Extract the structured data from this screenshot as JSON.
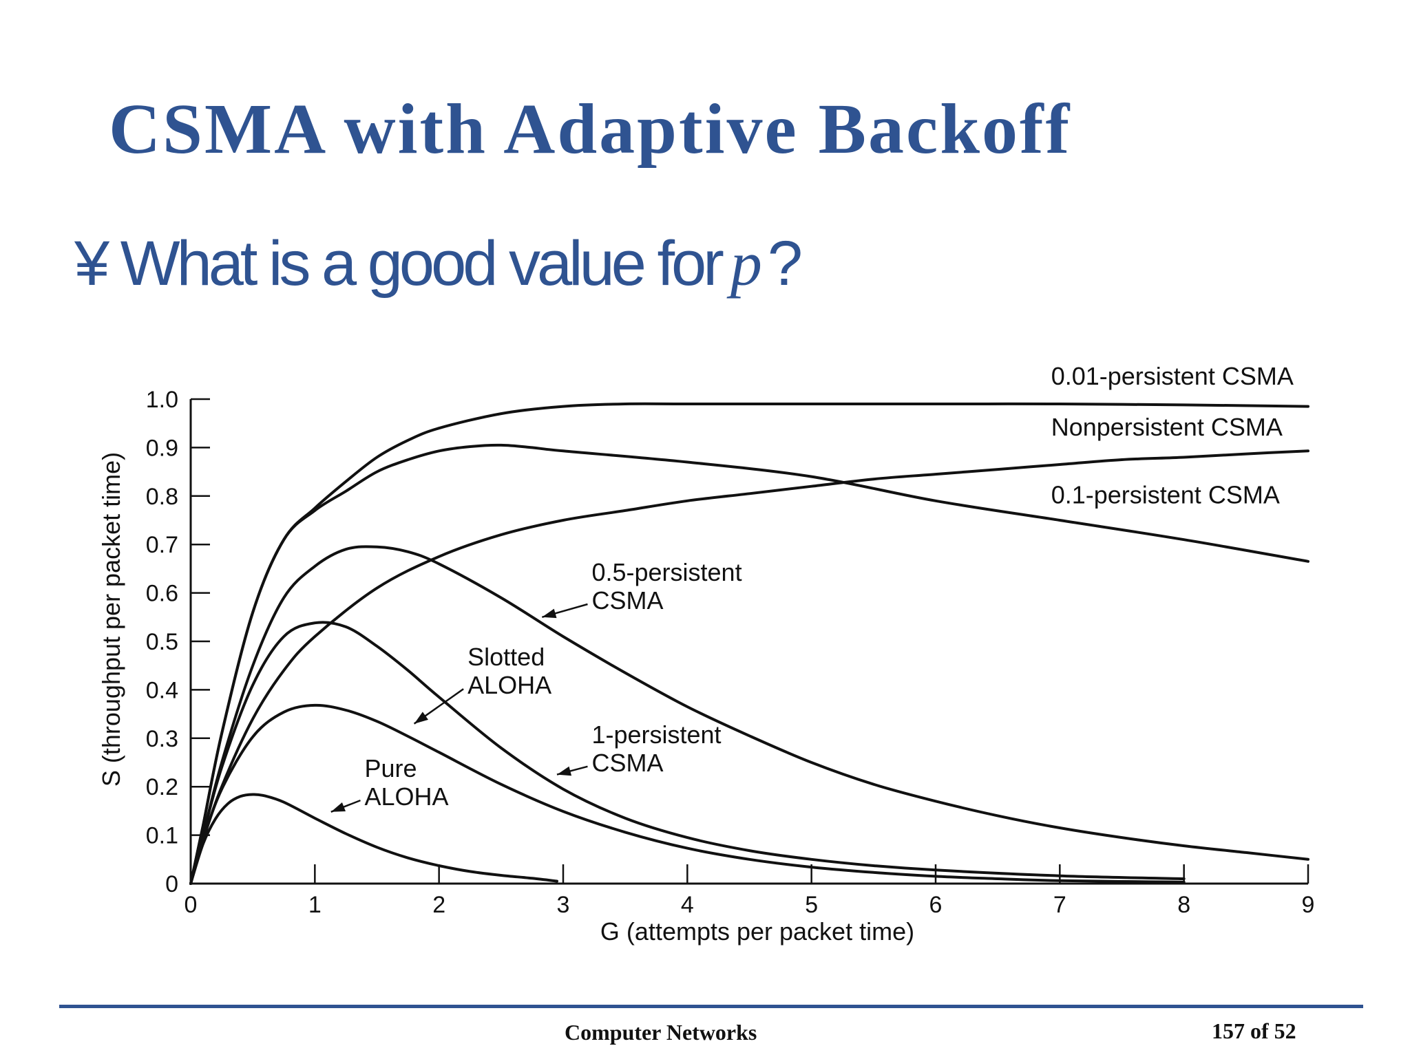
{
  "slide": {
    "title": "CSMA with Adaptive Backoff",
    "bullet_marker": "¥",
    "bullet_text": "What is a good value for",
    "bullet_var": "p",
    "bullet_end": "?"
  },
  "footer": {
    "course": "Computer Networks",
    "page": "157 of 52"
  },
  "chart_data": {
    "type": "line",
    "title": "",
    "xlabel": "G (attempts per packet time)",
    "ylabel": "S (throughput per packet time)",
    "xlim": [
      0,
      9
    ],
    "ylim": [
      0,
      1.0
    ],
    "x_ticks": [
      "0",
      "1",
      "2",
      "3",
      "4",
      "5",
      "6",
      "7",
      "8",
      "9"
    ],
    "y_ticks": [
      "0",
      "0.1",
      "0.2",
      "0.3",
      "0.4",
      "0.5",
      "0.6",
      "0.7",
      "0.8",
      "0.9",
      "1.0"
    ],
    "grid": false,
    "line_color": "#111111",
    "series": [
      {
        "name": "Pure ALOHA",
        "label_lines": [
          "Pure",
          "ALOHA"
        ],
        "points": [
          [
            0,
            0
          ],
          [
            0.1,
            0.082
          ],
          [
            0.2,
            0.134
          ],
          [
            0.3,
            0.165
          ],
          [
            0.4,
            0.18
          ],
          [
            0.5,
            0.184
          ],
          [
            0.6,
            0.181
          ],
          [
            0.75,
            0.168
          ],
          [
            1.0,
            0.135
          ],
          [
            1.25,
            0.103
          ],
          [
            1.5,
            0.075
          ],
          [
            1.75,
            0.053
          ],
          [
            2.0,
            0.037
          ],
          [
            2.25,
            0.025
          ],
          [
            2.5,
            0.017
          ],
          [
            2.75,
            0.011
          ],
          [
            2.95,
            0.005
          ]
        ]
      },
      {
        "name": "Slotted ALOHA",
        "label_lines": [
          "Slotted",
          "ALOHA"
        ],
        "points": [
          [
            0,
            0
          ],
          [
            0.1,
            0.09
          ],
          [
            0.25,
            0.195
          ],
          [
            0.5,
            0.303
          ],
          [
            0.75,
            0.354
          ],
          [
            1.0,
            0.368
          ],
          [
            1.25,
            0.358
          ],
          [
            1.5,
            0.335
          ],
          [
            1.75,
            0.304
          ],
          [
            2.0,
            0.271
          ],
          [
            2.5,
            0.205
          ],
          [
            3.0,
            0.149
          ],
          [
            3.5,
            0.106
          ],
          [
            4.0,
            0.073
          ],
          [
            4.5,
            0.05
          ],
          [
            5.0,
            0.034
          ],
          [
            5.5,
            0.023
          ],
          [
            6.0,
            0.015
          ],
          [
            6.5,
            0.01
          ],
          [
            7.0,
            0.006
          ],
          [
            8.0,
            0.003
          ]
        ]
      },
      {
        "name": "1-persistent CSMA",
        "label_lines": [
          "1-persistent",
          "CSMA"
        ],
        "points": [
          [
            0,
            0
          ],
          [
            0.1,
            0.1
          ],
          [
            0.25,
            0.24
          ],
          [
            0.5,
            0.41
          ],
          [
            0.75,
            0.51
          ],
          [
            1.0,
            0.538
          ],
          [
            1.25,
            0.53
          ],
          [
            1.5,
            0.49
          ],
          [
            1.75,
            0.44
          ],
          [
            2.0,
            0.385
          ],
          [
            2.5,
            0.28
          ],
          [
            3.0,
            0.195
          ],
          [
            3.5,
            0.135
          ],
          [
            4.0,
            0.095
          ],
          [
            4.5,
            0.068
          ],
          [
            5.0,
            0.05
          ],
          [
            5.5,
            0.037
          ],
          [
            6.0,
            0.028
          ],
          [
            7.0,
            0.016
          ],
          [
            8.0,
            0.01
          ]
        ]
      },
      {
        "name": "0.5-persistent CSMA",
        "label_lines": [
          "0.5-persistent",
          "CSMA"
        ],
        "points": [
          [
            0,
            0
          ],
          [
            0.1,
            0.1
          ],
          [
            0.25,
            0.25
          ],
          [
            0.5,
            0.45
          ],
          [
            0.75,
            0.59
          ],
          [
            1.0,
            0.655
          ],
          [
            1.25,
            0.69
          ],
          [
            1.5,
            0.695
          ],
          [
            1.75,
            0.685
          ],
          [
            2.0,
            0.66
          ],
          [
            2.5,
            0.59
          ],
          [
            3.0,
            0.51
          ],
          [
            3.5,
            0.435
          ],
          [
            4.0,
            0.365
          ],
          [
            4.5,
            0.305
          ],
          [
            5.0,
            0.25
          ],
          [
            5.5,
            0.205
          ],
          [
            6.0,
            0.17
          ],
          [
            6.5,
            0.14
          ],
          [
            7.0,
            0.115
          ],
          [
            7.5,
            0.095
          ],
          [
            8.0,
            0.078
          ],
          [
            8.5,
            0.064
          ],
          [
            9.0,
            0.05
          ]
        ]
      },
      {
        "name": "0.1-persistent CSMA",
        "label_lines": [
          "0.1-persistent CSMA"
        ],
        "points": [
          [
            0,
            0
          ],
          [
            0.1,
            0.09
          ],
          [
            0.25,
            0.2
          ],
          [
            0.5,
            0.34
          ],
          [
            0.75,
            0.44
          ],
          [
            1.0,
            0.51
          ],
          [
            1.5,
            0.61
          ],
          [
            2.0,
            0.675
          ],
          [
            2.5,
            0.72
          ],
          [
            3.0,
            0.75
          ],
          [
            3.5,
            0.77
          ],
          [
            4.0,
            0.79
          ],
          [
            4.5,
            0.805
          ],
          [
            5.0,
            0.82
          ],
          [
            5.5,
            0.835
          ],
          [
            6.0,
            0.845
          ],
          [
            6.5,
            0.855
          ],
          [
            7.0,
            0.865
          ],
          [
            7.5,
            0.875
          ],
          [
            8.0,
            0.88
          ],
          [
            8.5,
            0.887
          ],
          [
            9.0,
            0.893
          ]
        ]
      },
      {
        "name": "Nonpersistent CSMA",
        "label_lines": [
          "Nonpersistent CSMA"
        ],
        "points": [
          [
            0,
            0
          ],
          [
            0.1,
            0.12
          ],
          [
            0.25,
            0.31
          ],
          [
            0.5,
            0.56
          ],
          [
            0.75,
            0.71
          ],
          [
            1.0,
            0.77
          ],
          [
            1.25,
            0.81
          ],
          [
            1.5,
            0.85
          ],
          [
            1.75,
            0.875
          ],
          [
            2.0,
            0.893
          ],
          [
            2.25,
            0.902
          ],
          [
            2.5,
            0.905
          ],
          [
            2.75,
            0.9
          ],
          [
            3.0,
            0.893
          ],
          [
            4.0,
            0.87
          ],
          [
            5.0,
            0.84
          ],
          [
            6.0,
            0.79
          ],
          [
            7.0,
            0.75
          ],
          [
            8.0,
            0.71
          ],
          [
            9.0,
            0.665
          ]
        ]
      },
      {
        "name": "0.01-persistent CSMA",
        "label_lines": [
          "0.01-persistent CSMA"
        ],
        "points": [
          [
            0,
            0
          ],
          [
            0.1,
            0.12
          ],
          [
            0.25,
            0.31
          ],
          [
            0.5,
            0.56
          ],
          [
            0.75,
            0.71
          ],
          [
            1.0,
            0.775
          ],
          [
            1.25,
            0.83
          ],
          [
            1.5,
            0.88
          ],
          [
            1.75,
            0.915
          ],
          [
            2.0,
            0.94
          ],
          [
            2.5,
            0.97
          ],
          [
            3.0,
            0.985
          ],
          [
            3.5,
            0.99
          ],
          [
            4.0,
            0.99
          ],
          [
            5.0,
            0.99
          ],
          [
            6.0,
            0.99
          ],
          [
            7.0,
            0.99
          ],
          [
            8.0,
            0.988
          ],
          [
            9.0,
            0.985
          ]
        ]
      }
    ],
    "annotations": [
      {
        "series": "0.01-persistent CSMA",
        "text_x": 6.93,
        "text_y": 1.03
      },
      {
        "series": "Nonpersistent CSMA",
        "text_x": 6.93,
        "text_y": 0.925
      },
      {
        "series": "0.1-persistent CSMA",
        "text_x": 6.93,
        "text_y": 0.785
      },
      {
        "series": "0.5-persistent CSMA",
        "text_x": 3.23,
        "text_y": 0.625,
        "arrow_to": [
          2.83,
          0.55
        ]
      },
      {
        "series": "Slotted ALOHA",
        "text_x": 2.23,
        "text_y": 0.45,
        "arrow_to": [
          1.8,
          0.33
        ]
      },
      {
        "series": "1-persistent CSMA",
        "text_x": 3.23,
        "text_y": 0.29,
        "arrow_to": [
          2.95,
          0.225
        ]
      },
      {
        "series": "Pure ALOHA",
        "text_x": 1.4,
        "text_y": 0.22,
        "arrow_to": [
          1.13,
          0.148
        ]
      }
    ]
  }
}
